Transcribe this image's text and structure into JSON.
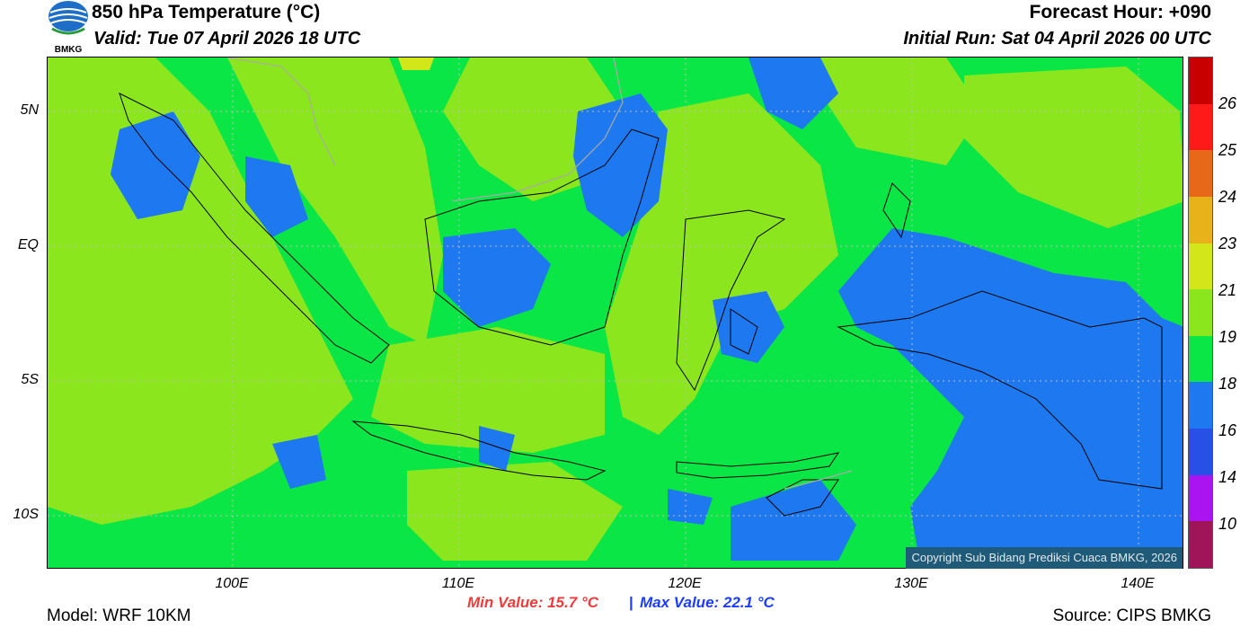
{
  "header": {
    "title": "850 hPa Temperature (°C)",
    "valid": "Valid: Tue 07 April 2026 18 UTC",
    "forecast_hour": "Forecast Hour: +090",
    "initial_run": "Initial Run: Sat 04 April 2026 00 UTC",
    "logo_text": "BMKG"
  },
  "map": {
    "lat_labels": [
      "5N",
      "EQ",
      "5S",
      "10S"
    ],
    "lon_labels": [
      "100E",
      "110E",
      "120E",
      "130E",
      "140E"
    ],
    "copyright": "Copyright Sub Bidang Prediksi Cuaca BMKG, 2026"
  },
  "colorbar": {
    "labels": [
      "26",
      "25",
      "24",
      "23",
      "21",
      "19",
      "18",
      "16",
      "14",
      "10"
    ],
    "colors": [
      "#c80000",
      "#ff1a1a",
      "#e8681a",
      "#e8b21a",
      "#d2e61a",
      "#8ce61e",
      "#0ae646",
      "#1e78f0",
      "#2850e6",
      "#aa14f0",
      "#a0145a"
    ]
  },
  "stats": {
    "min": "Min Value: 15.7 °C",
    "separator": "|",
    "max": "Max Value: 22.1 °C"
  },
  "footer": {
    "model": "Model: WRF 10KM",
    "source": "Source: CIPS BMKG"
  }
}
